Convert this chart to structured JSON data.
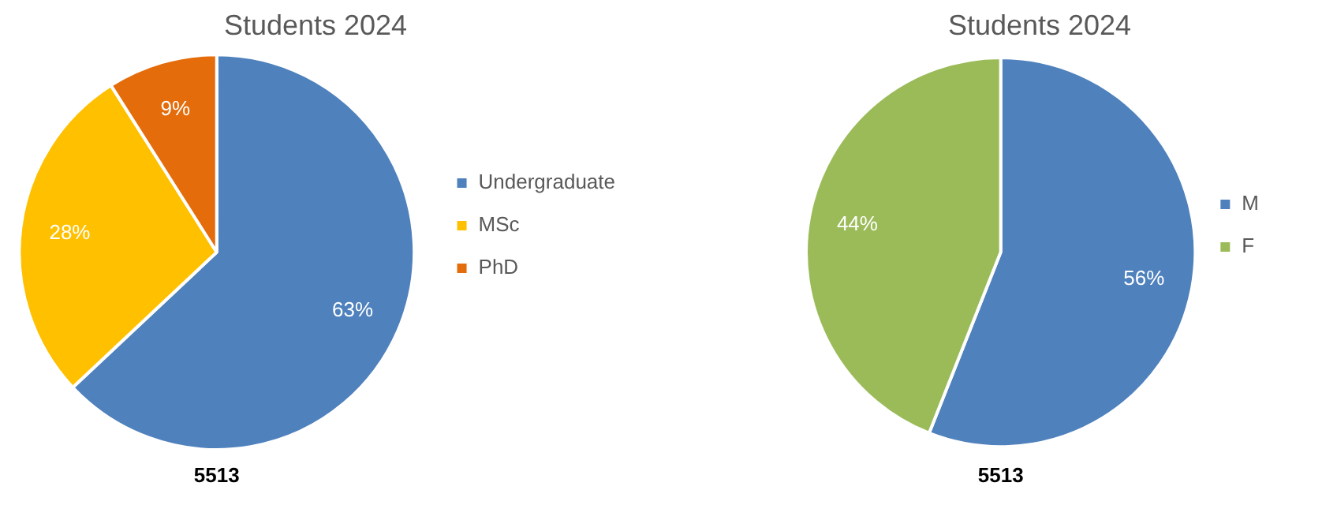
{
  "chart_data": [
    {
      "type": "pie",
      "title": "Students 2024",
      "categories": [
        "Undergraduate",
        "MSc",
        "PhD"
      ],
      "values": [
        63,
        28,
        9
      ],
      "colors": [
        "#4f81bd",
        "#ffc000",
        "#e46c0a"
      ],
      "value_labels": [
        "63%",
        "28%",
        "9%"
      ],
      "legend": "right",
      "annotations": [
        "5513"
      ]
    },
    {
      "type": "pie",
      "title": "Students 2024",
      "categories": [
        "M",
        "F"
      ],
      "values": [
        56,
        44
      ],
      "colors": [
        "#4f81bd",
        "#9bbb59"
      ],
      "value_labels": [
        "56%",
        "44%"
      ],
      "legend": "right",
      "annotations": [
        "5513"
      ]
    }
  ]
}
